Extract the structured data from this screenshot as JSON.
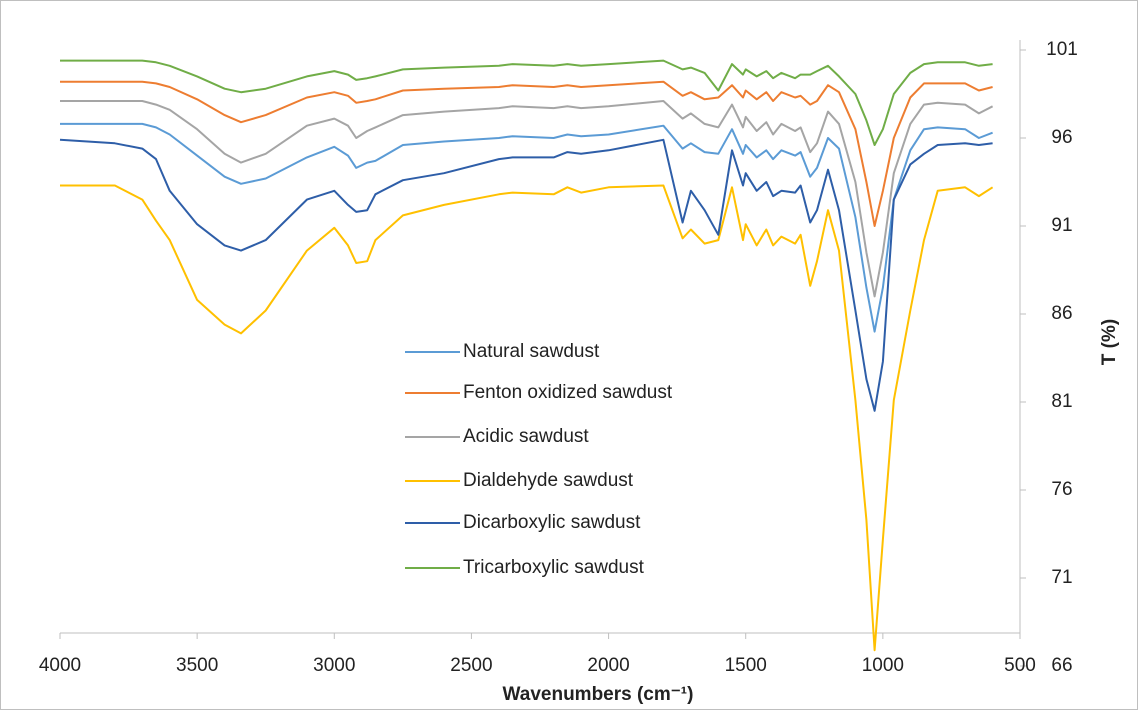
{
  "chart_data": {
    "type": "line",
    "x_label": "Wavenumbers (cm⁻¹)",
    "y_label": "T (%)",
    "xlim": [
      4000,
      500
    ],
    "xticks": [
      4000,
      3500,
      3000,
      2500,
      2000,
      1500,
      1000,
      500
    ],
    "ylim": [
      66,
      101
    ],
    "yticks": [
      66,
      71,
      76,
      81,
      86,
      91,
      96,
      101
    ],
    "y_axis_side": "right",
    "x": [
      4000,
      3800,
      3700,
      3650,
      3600,
      3500,
      3400,
      3340,
      3250,
      3100,
      3000,
      2950,
      2920,
      2880,
      2850,
      2750,
      2600,
      2400,
      2350,
      2200,
      2150,
      2100,
      2000,
      1800,
      1730,
      1700,
      1650,
      1600,
      1550,
      1510,
      1500,
      1460,
      1425,
      1400,
      1370,
      1320,
      1300,
      1265,
      1240,
      1200,
      1160,
      1100,
      1060,
      1030,
      1000,
      960,
      900,
      850,
      800,
      700,
      650,
      600
    ],
    "series": [
      {
        "name": "Natural sawdust",
        "color": "#5b9bd5",
        "values": [
          96.8,
          96.8,
          96.8,
          96.6,
          96.2,
          95.0,
          93.8,
          93.4,
          93.7,
          94.9,
          95.5,
          95.0,
          94.3,
          94.6,
          94.7,
          95.6,
          95.8,
          96.0,
          96.1,
          96.0,
          96.2,
          96.1,
          96.2,
          96.7,
          95.4,
          95.7,
          95.2,
          95.1,
          96.5,
          95.1,
          95.6,
          94.9,
          95.3,
          94.8,
          95.3,
          95.0,
          95.2,
          93.8,
          94.3,
          96.0,
          95.4,
          91.5,
          87.5,
          85.0,
          87.5,
          92.5,
          95.3,
          96.5,
          96.6,
          96.5,
          96.0,
          96.3
        ]
      },
      {
        "name": "Fenton oxidized sawdust",
        "color": "#ed7d31",
        "values": [
          99.2,
          99.2,
          99.2,
          99.1,
          98.9,
          98.2,
          97.3,
          96.9,
          97.3,
          98.3,
          98.6,
          98.4,
          98.0,
          98.1,
          98.2,
          98.7,
          98.8,
          98.9,
          99.0,
          98.9,
          99.0,
          98.9,
          99.0,
          99.2,
          98.4,
          98.6,
          98.2,
          98.3,
          99.0,
          98.3,
          98.7,
          98.2,
          98.6,
          98.1,
          98.6,
          98.3,
          98.4,
          97.9,
          98.1,
          99.0,
          98.6,
          96.5,
          93.5,
          91.0,
          93.0,
          96.0,
          98.3,
          99.1,
          99.1,
          99.1,
          98.7,
          98.9
        ]
      },
      {
        "name": "Acidic sawdust",
        "color": "#a5a5a5",
        "values": [
          98.1,
          98.1,
          98.1,
          97.9,
          97.6,
          96.5,
          95.1,
          94.6,
          95.1,
          96.7,
          97.1,
          96.7,
          96.0,
          96.4,
          96.6,
          97.3,
          97.5,
          97.7,
          97.8,
          97.7,
          97.8,
          97.7,
          97.8,
          98.1,
          97.1,
          97.4,
          96.8,
          96.6,
          97.9,
          96.6,
          97.2,
          96.4,
          96.9,
          96.2,
          96.8,
          96.4,
          96.6,
          95.2,
          95.7,
          97.5,
          96.8,
          93.5,
          89.5,
          87.0,
          89.5,
          94.0,
          96.8,
          97.9,
          98.0,
          97.9,
          97.4,
          97.8
        ]
      },
      {
        "name": "Dialdehyde sawdust",
        "color": "#ffc000",
        "values": [
          93.3,
          93.3,
          92.5,
          91.3,
          90.2,
          86.8,
          85.4,
          84.9,
          86.2,
          89.6,
          90.9,
          89.9,
          88.9,
          89.0,
          90.2,
          91.6,
          92.2,
          92.8,
          92.9,
          92.8,
          93.2,
          92.9,
          93.2,
          93.3,
          90.3,
          90.8,
          90.0,
          90.2,
          93.2,
          90.2,
          91.1,
          89.9,
          90.8,
          89.9,
          90.4,
          90.0,
          90.5,
          87.6,
          89.0,
          91.9,
          89.6,
          81.1,
          74.3,
          66.9,
          73.2,
          81.1,
          86.2,
          90.2,
          93.0,
          93.2,
          92.7,
          93.2
        ]
      },
      {
        "name": "Dicarboxylic sawdust",
        "color": "#2e5ea8",
        "values": [
          95.9,
          95.7,
          95.4,
          94.8,
          93.0,
          91.1,
          89.9,
          89.6,
          90.2,
          92.5,
          93.0,
          92.2,
          91.8,
          91.9,
          92.8,
          93.6,
          94.0,
          94.8,
          94.9,
          94.9,
          95.2,
          95.1,
          95.3,
          95.9,
          91.2,
          93.0,
          91.9,
          90.5,
          95.3,
          93.3,
          94.0,
          93.0,
          93.5,
          92.7,
          93.0,
          92.9,
          93.3,
          91.2,
          91.9,
          94.2,
          91.9,
          86.2,
          82.3,
          80.5,
          83.3,
          92.5,
          94.5,
          95.1,
          95.6,
          95.7,
          95.6,
          95.7
        ]
      },
      {
        "name": "Tricarboxylic sawdust",
        "color": "#70ad47",
        "values": [
          100.4,
          100.4,
          100.4,
          100.3,
          100.1,
          99.5,
          98.8,
          98.6,
          98.8,
          99.5,
          99.8,
          99.6,
          99.3,
          99.4,
          99.5,
          99.9,
          100.0,
          100.1,
          100.2,
          100.1,
          100.2,
          100.1,
          100.2,
          100.4,
          99.9,
          100.0,
          99.7,
          98.7,
          100.2,
          99.6,
          99.9,
          99.5,
          99.8,
          99.4,
          99.7,
          99.4,
          99.6,
          99.6,
          99.8,
          100.1,
          99.5,
          98.5,
          97.0,
          95.6,
          96.5,
          98.5,
          99.7,
          100.2,
          100.3,
          100.3,
          100.1,
          100.2
        ]
      }
    ]
  }
}
